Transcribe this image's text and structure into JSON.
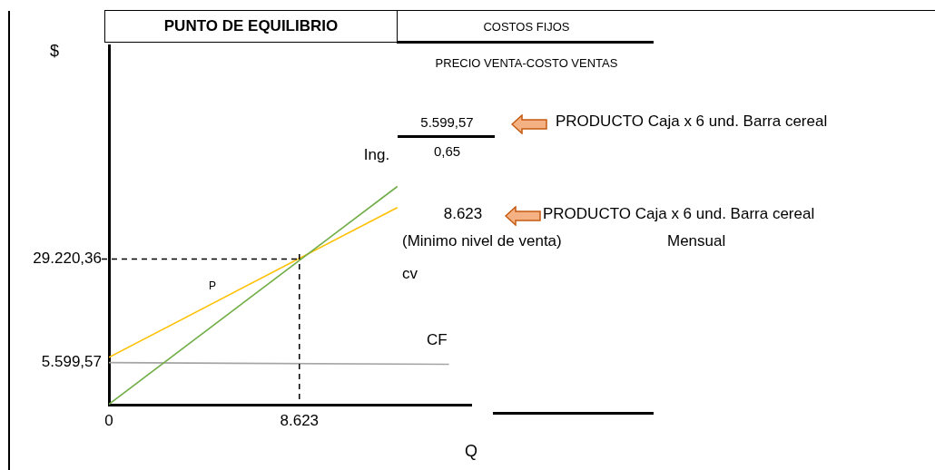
{
  "chart_data": {
    "type": "line",
    "title": "PUNTO DE EQUILIBRIO",
    "xlabel": "Q",
    "ylabel": "$",
    "xlim": [
      0,
      16400
    ],
    "ylim": [
      -4000,
      78000
    ],
    "xticks": [
      0,
      {
        "value": 8623,
        "label": "8.623"
      }
    ],
    "yticks": [
      {
        "value": 5599.57,
        "label": "5.599,57"
      },
      {
        "value": 29220.36,
        "label": "29.220,36"
      }
    ],
    "grid": false,
    "legend": false,
    "marker": "none",
    "line_style": "solid",
    "series": [
      {
        "color": "#70ad47",
        "x": [
          0,
          13060
        ],
        "values": [
          -3900,
          45800
        ]
      },
      {
        "color": "#ffc000",
        "x": [
          0,
          13060
        ],
        "values": [
          6800,
          41000
        ]
      },
      {
        "color": "#a5a5a5",
        "x": [
          0,
          15400
        ],
        "values": [
          5600,
          5200
        ]
      }
    ],
    "ref_lines": [
      {
        "axis": "x",
        "value": 8623,
        "color": "#000000",
        "line_style": "dashed"
      },
      {
        "axis": "y",
        "value": 29220.36,
        "color": "#000000",
        "line_style": "dashed"
      }
    ],
    "annotations": [
      "COSTOS FIJOS",
      "PRECIO VENTA-COSTO VENTAS",
      "5.599,57",
      "0,65",
      "PRODUCTO Caja x 6 und. Barra cereal",
      "8.623",
      "PRODUCTO Caja x 6 und. Barra cereal",
      "(Minimo nivel de venta)",
      "Mensual",
      "Ing.",
      "cv",
      "CF",
      "P"
    ]
  }
}
